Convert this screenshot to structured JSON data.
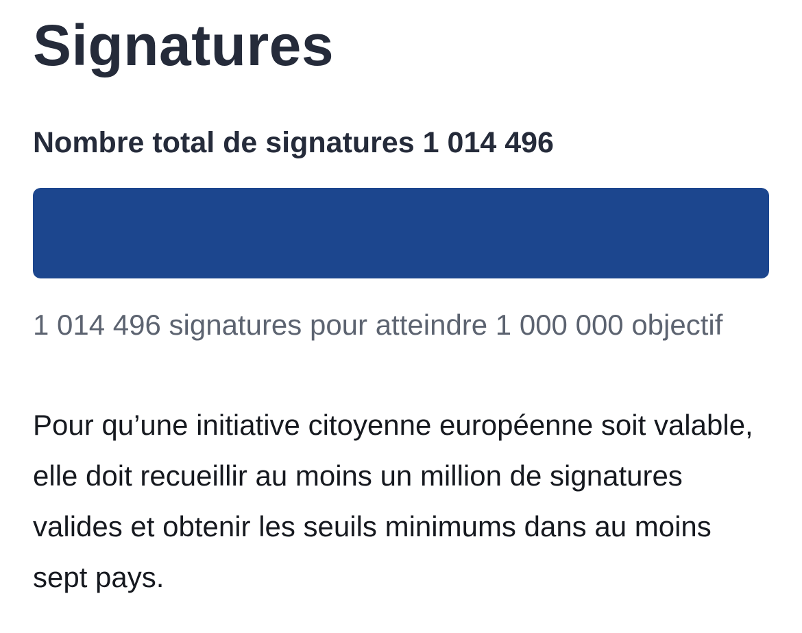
{
  "section": {
    "title": "Signatures"
  },
  "total": {
    "label": "Nombre total de signatures",
    "value": "1 014 496"
  },
  "progress": {
    "collected": 1014496,
    "goal": 1000000,
    "fill_fraction": 1.0,
    "fill_color": "#1c468e",
    "track_color": "#e9edf3"
  },
  "caption": {
    "text": "1 014 496 signatures pour atteindre 1 000 000 objectif"
  },
  "info": {
    "text": "Pour qu’une initiative citoyenne européenne soit valable, elle doit recueillir au moins un million de signatures valides et obtenir les seuils minimums dans au moins sept pays."
  }
}
